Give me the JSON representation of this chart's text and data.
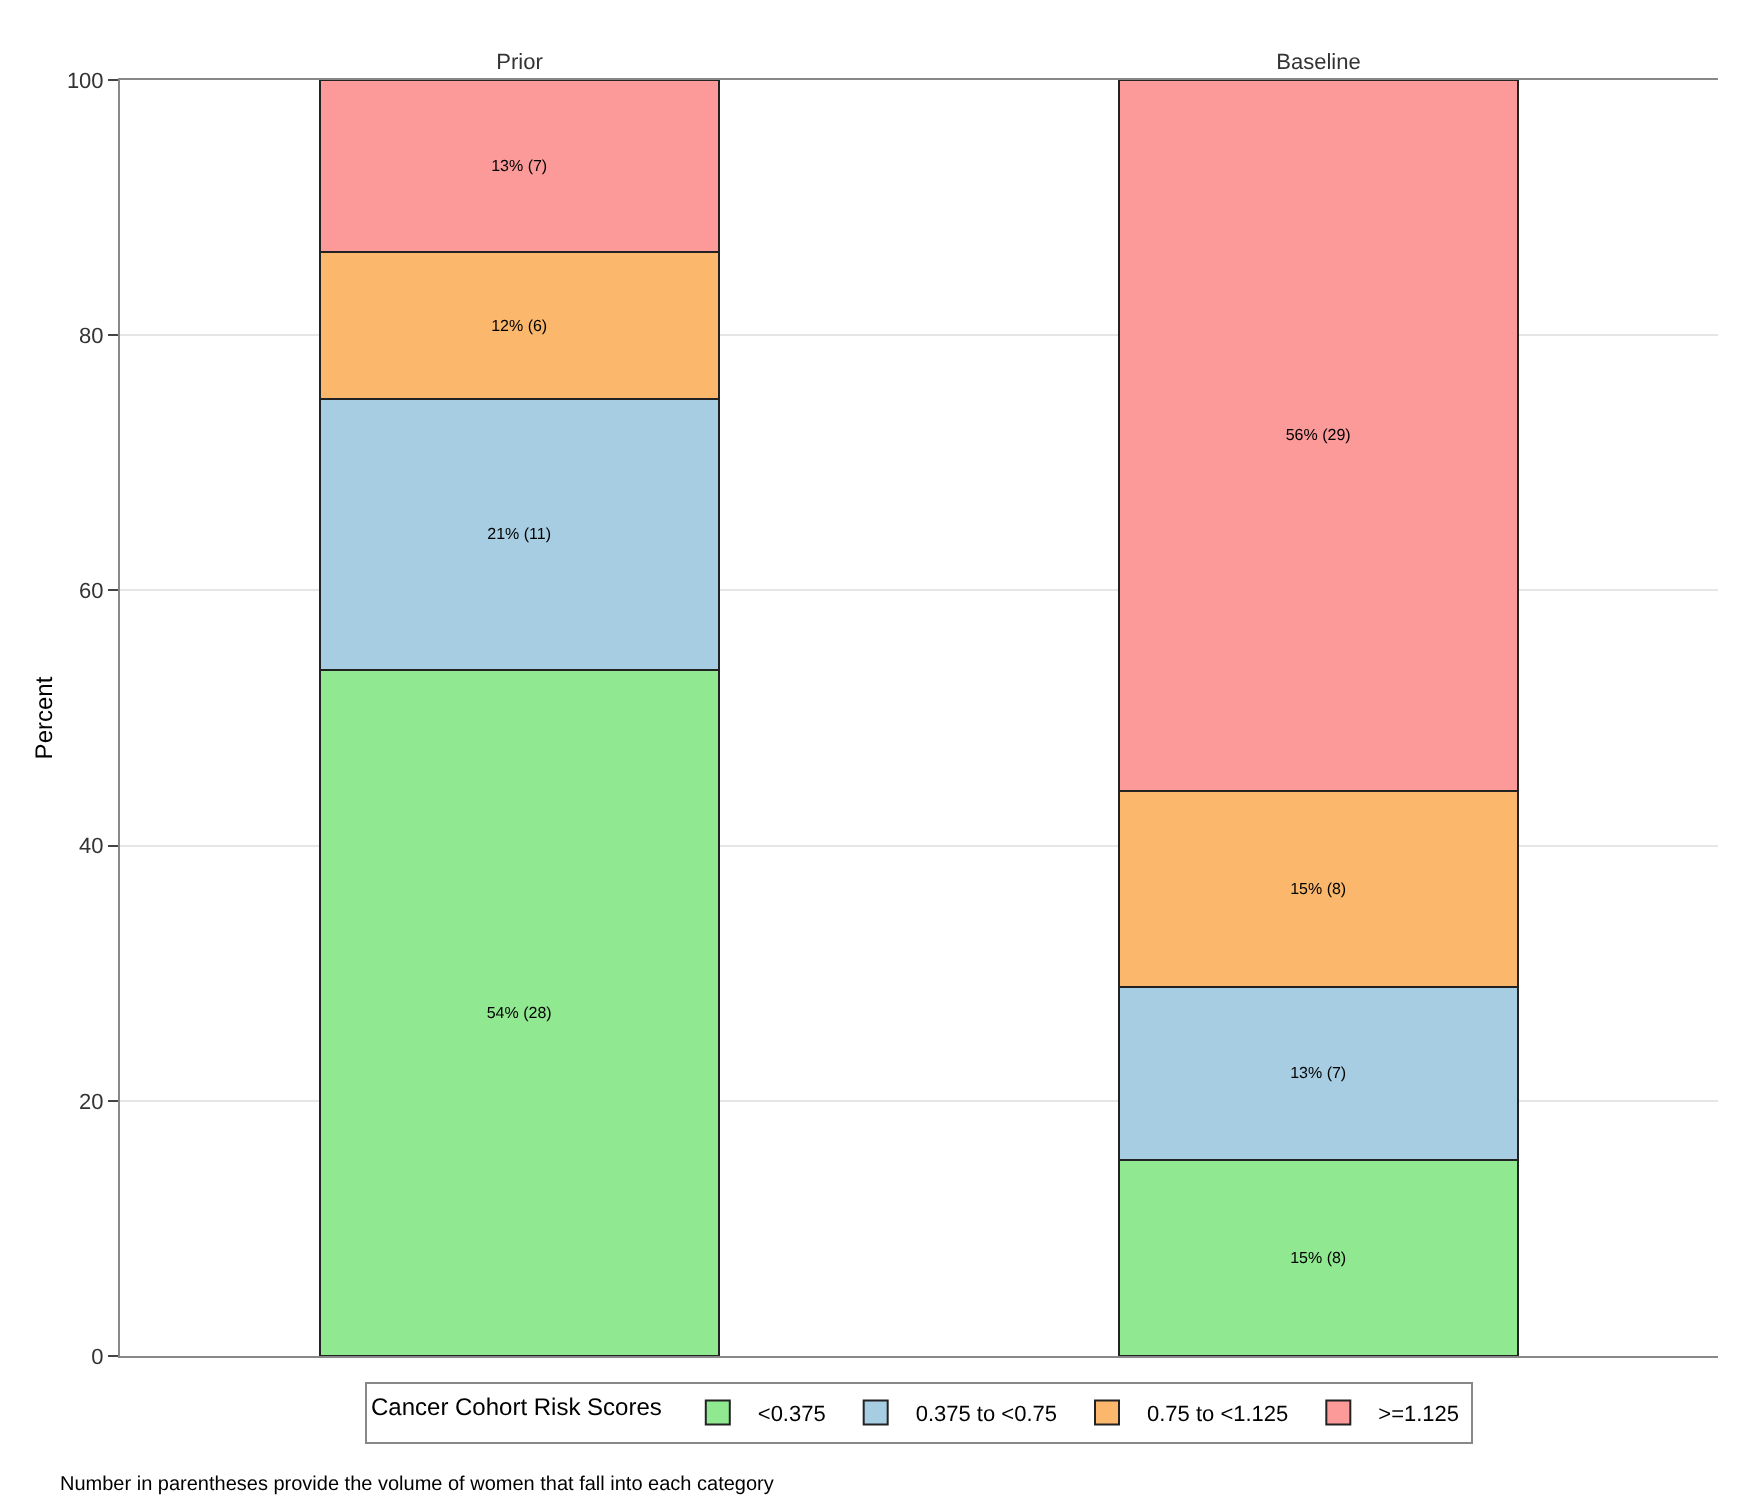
{
  "chart_data": {
    "type": "bar",
    "stacked": true,
    "categories": [
      "Prior",
      "Baseline"
    ],
    "ylabel": "Percent",
    "ylim": [
      0,
      100
    ],
    "yticks": [
      0,
      20,
      40,
      60,
      80,
      100
    ],
    "grid": "y",
    "legend": "bottom",
    "legend_title": "Cancer Cohort Risk Scores",
    "series": [
      {
        "name": "<0.375",
        "color": "#90e890",
        "values": [
          53.8,
          15.4
        ],
        "value_labels": [
          "54% (28)",
          "15% (8)"
        ]
      },
      {
        "name": "0.375 to <0.75",
        "color": "#a6cde2",
        "values": [
          21.2,
          13.5
        ],
        "value_labels": [
          "21% (11)",
          "13% (7)"
        ]
      },
      {
        "name": "0.75 to <1.125",
        "color": "#fbb86c",
        "values": [
          11.5,
          15.4
        ],
        "value_labels": [
          "12% (6)",
          "15% (8)"
        ]
      },
      {
        "name": ">=1.125",
        "color": "#fb9a99",
        "values": [
          13.5,
          55.7
        ],
        "value_labels": [
          "13% (7)",
          "56% (29)"
        ]
      }
    ],
    "annotations": [
      "Number in parentheses provide the volume of women that fall into each category"
    ]
  }
}
